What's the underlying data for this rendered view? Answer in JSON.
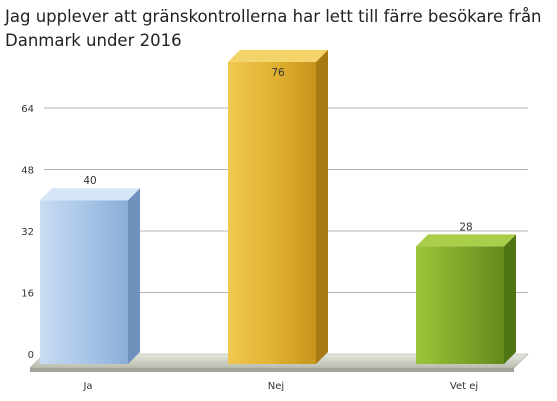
{
  "chart_data": {
    "type": "bar",
    "title": "Jag upplever att gränskontrollerna har lett till färre besökare från Danmark under 2016",
    "categories": [
      "Ja",
      "Nej",
      "Vet ej"
    ],
    "values": [
      40,
      76,
      28
    ],
    "yticks": [
      0,
      16,
      32,
      48,
      64
    ],
    "ylim": [
      0,
      80
    ],
    "grid": true,
    "bar_style": "3d",
    "colors": [
      "#a9c6e8",
      "#e0b030",
      "#7fa82a"
    ]
  }
}
